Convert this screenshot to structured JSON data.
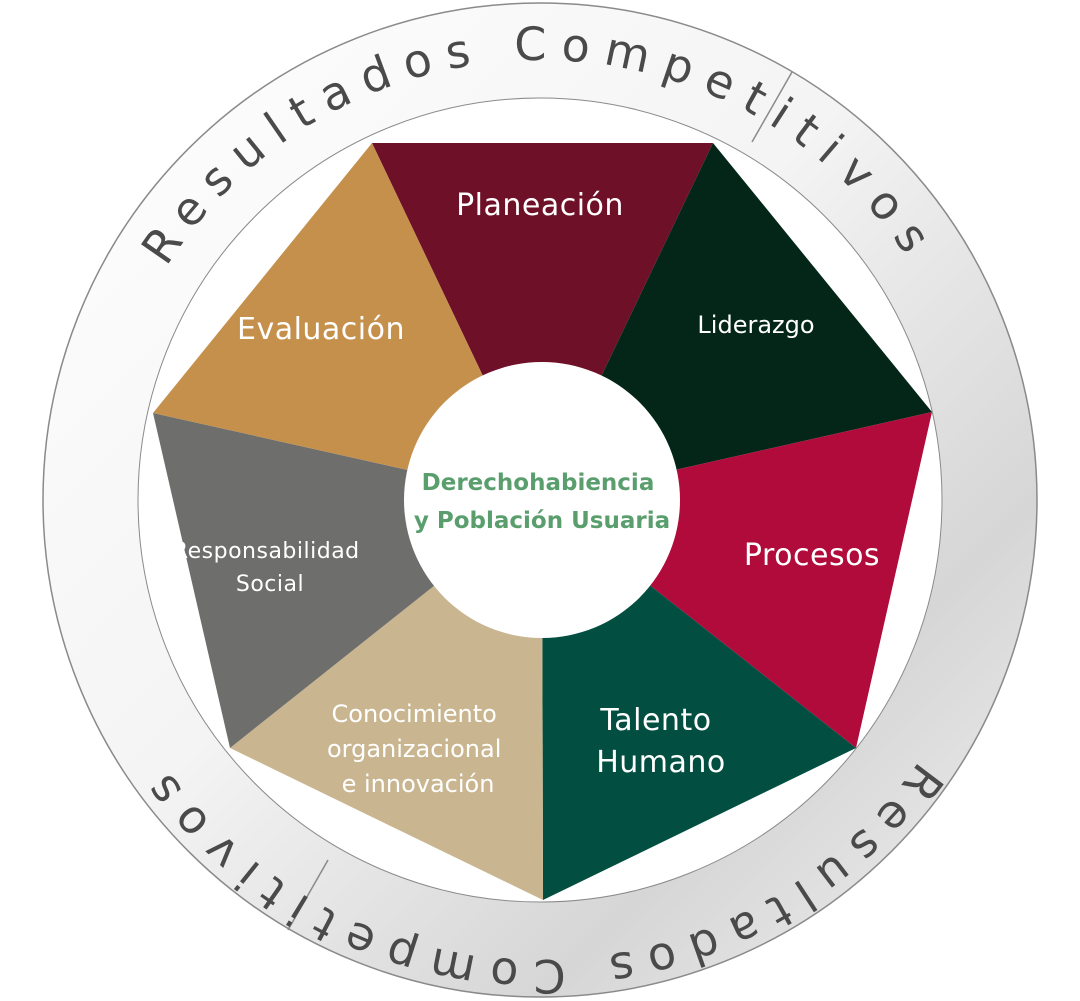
{
  "ring_labels": [
    "Resultados Competitivos",
    "Resultados Competitivos"
  ],
  "center": {
    "line1": "Derechohabiencia",
    "line2": "y Población Usuaria",
    "color": "#5a9e6e"
  },
  "segments": [
    {
      "id": "planeacion",
      "lines": [
        "Planeación"
      ],
      "color": "#6e1027"
    },
    {
      "id": "liderazgo",
      "lines": [
        "Liderazgo"
      ],
      "color": "#032619"
    },
    {
      "id": "procesos",
      "lines": [
        "Procesos"
      ],
      "color": "#b00b3b"
    },
    {
      "id": "talento",
      "lines": [
        "Talento",
        "Humano"
      ],
      "color": "#024f42"
    },
    {
      "id": "conocimiento",
      "lines": [
        "Conocimiento",
        "organizacional",
        "e innovación"
      ],
      "color": "#c9b690"
    },
    {
      "id": "responsabilidad",
      "lines": [
        "Responsabilidad",
        "Social"
      ],
      "color": "#6e6e6c"
    },
    {
      "id": "evaluacion",
      "lines": [
        "Evaluación"
      ],
      "color": "#c4904c"
    }
  ],
  "colors": {
    "ring_light": "#f7f7f7",
    "ring_dark": "#cfcfcf",
    "outline": "#8a8a8a"
  }
}
